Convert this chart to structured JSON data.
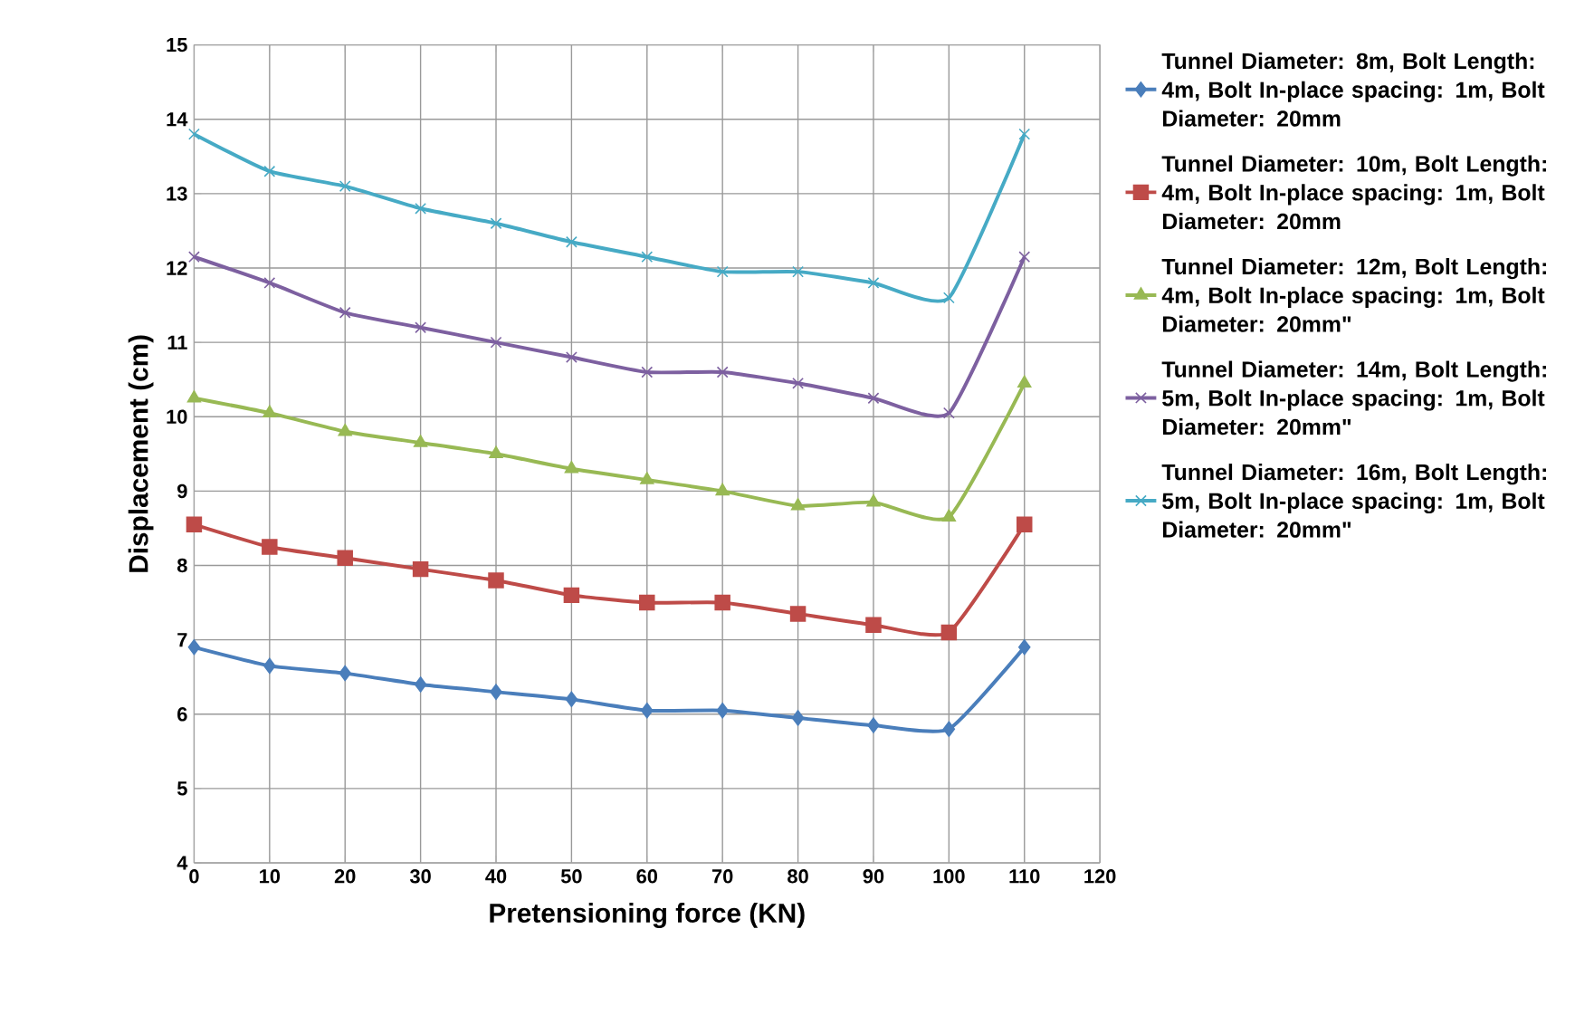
{
  "chart_data": {
    "type": "line",
    "xlabel": "Pretensioning force (KN)",
    "ylabel": "Displacement (cm)",
    "x": [
      0,
      10,
      20,
      30,
      40,
      50,
      60,
      70,
      80,
      90,
      100,
      110
    ],
    "xlim": [
      0,
      120
    ],
    "xticks": [
      0,
      10,
      20,
      30,
      40,
      50,
      60,
      70,
      80,
      90,
      100,
      110,
      120
    ],
    "ylim": [
      4,
      15
    ],
    "yticks": [
      4,
      5,
      6,
      7,
      8,
      9,
      10,
      11,
      12,
      13,
      14,
      15
    ],
    "grid": true,
    "legend": "right",
    "line_style": "solid",
    "series": [
      {
        "name": "Tunnel Diameter: 8m, Bolt Length: 4m, Bolt In-place spacing: 1m, Bolt Diameter: 20mm",
        "color": "#4a7ebb",
        "marker": "diamond",
        "values": [
          6.9,
          6.65,
          6.55,
          6.4,
          6.3,
          6.2,
          6.05,
          6.05,
          5.95,
          5.85,
          5.8,
          6.9
        ]
      },
      {
        "name": "Tunnel Diameter: 10m, Bolt Length: 4m, Bolt In-place spacing: 1m, Bolt Diameter: 20mm",
        "color": "#be4b48",
        "marker": "square",
        "values": [
          8.55,
          8.25,
          8.1,
          7.95,
          7.8,
          7.6,
          7.5,
          7.5,
          7.35,
          7.2,
          7.1,
          8.55
        ]
      },
      {
        "name": "Tunnel Diameter: 12m, Bolt Length: 4m, Bolt In-place spacing: 1m, Bolt Diameter: 20mm\"",
        "color": "#98b954",
        "marker": "triangle",
        "values": [
          10.25,
          10.05,
          9.8,
          9.65,
          9.5,
          9.3,
          9.15,
          9.0,
          8.8,
          8.85,
          8.65,
          10.45
        ]
      },
      {
        "name": "Tunnel Diameter: 14m, Bolt Length: 5m, Bolt In-place spacing: 1m, Bolt Diameter: 20mm\"",
        "color": "#7d60a0",
        "marker": "cross",
        "values": [
          12.15,
          11.8,
          11.4,
          11.2,
          11.0,
          10.8,
          10.6,
          10.6,
          10.45,
          10.25,
          10.05,
          12.15
        ]
      },
      {
        "name": "Tunnel Diameter: 16m, Bolt Length: 5m, Bolt In-place spacing: 1m, Bolt Diameter: 20mm\"",
        "color": "#46aac5",
        "marker": "cross",
        "values": [
          13.8,
          13.3,
          13.1,
          12.8,
          12.6,
          12.35,
          12.15,
          11.95,
          11.95,
          11.8,
          11.6,
          13.8
        ]
      }
    ]
  }
}
